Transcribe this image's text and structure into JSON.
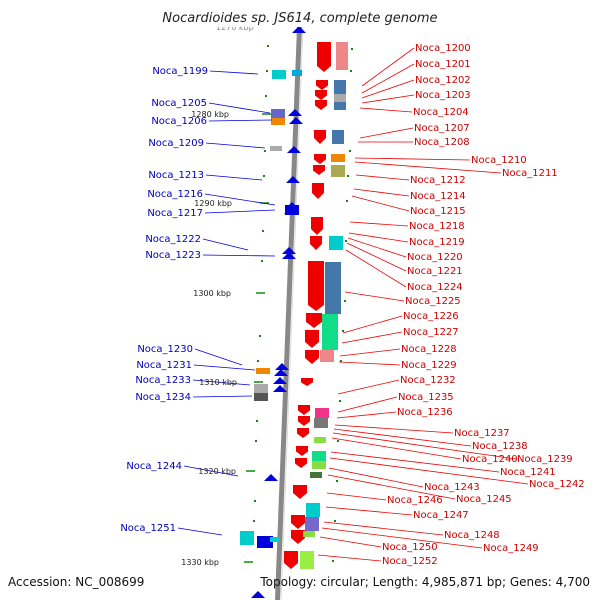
{
  "title": "Nocardioides sp. JS614, complete genome",
  "faded_tick": "1270 kbp",
  "footer": {
    "accession": "Accession: NC_008699",
    "topology": "Topology: circular; Length: 4,985,871 bp; Genes: 4,700"
  },
  "colors": {
    "reverse_strand": "#0000dd",
    "forward_strand": "#ee0000",
    "backbone": "#888888",
    "tick": "#118811"
  },
  "kbp_ticks": [
    "1280 kbp",
    "1290 kbp",
    "1300 kbp",
    "1310 kbp",
    "1320 kbp",
    "1330 kbp"
  ],
  "left_labels": [
    "Noca_1199",
    "Noca_1205",
    "Noca_1206",
    "Noca_1209",
    "Noca_1213",
    "Noca_1216",
    "Noca_1217",
    "Noca_1222",
    "Noca_1223",
    "Noca_1230",
    "Noca_1231",
    "Noca_1233",
    "Noca_1234",
    "Noca_1244",
    "Noca_1251"
  ],
  "right_labels": [
    "Noca_1200",
    "Noca_1201",
    "Noca_1202",
    "Noca_1203",
    "Noca_1204",
    "Noca_1207",
    "Noca_1208",
    "Noca_1210",
    "Noca_1211",
    "Noca_1212",
    "Noca_1214",
    "Noca_1215",
    "Noca_1218",
    "Noca_1219",
    "Noca_1220",
    "Noca_1221",
    "Noca_1224",
    "Noca_1225",
    "Noca_1226",
    "Noca_1227",
    "Noca_1228",
    "Noca_1229",
    "Noca_1232",
    "Noca_1235",
    "Noca_1236",
    "Noca_1237",
    "Noca_1238",
    "Noca_1239",
    "Noca_1240",
    "Noca_1241",
    "Noca_1242",
    "Noca_1243",
    "Noca_1245",
    "Noca_1246",
    "Noca_1247",
    "Noca_1248",
    "Noca_1249",
    "Noca_1250",
    "Noca_1252"
  ]
}
